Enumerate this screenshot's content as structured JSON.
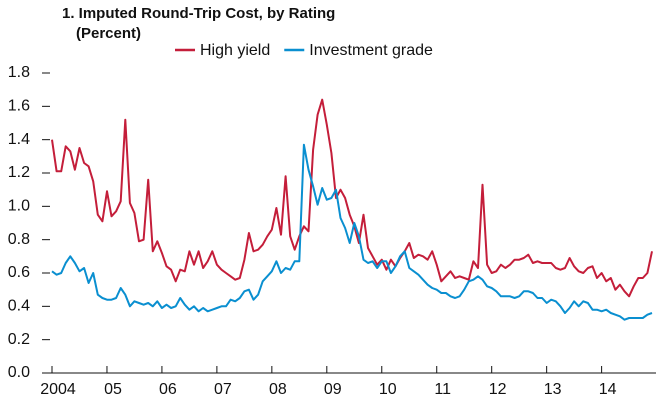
{
  "chart_data": {
    "type": "line",
    "title": "1. Imputed Round-Trip Cost, by Rating",
    "subtitle": "(Percent)",
    "categories": [
      "2004",
      null,
      null,
      null,
      null,
      null,
      null,
      null,
      null,
      null,
      null,
      null,
      "05",
      null,
      null,
      null,
      null,
      null,
      null,
      null,
      null,
      null,
      null,
      null,
      "06",
      null,
      null,
      null,
      null,
      null,
      null,
      null,
      null,
      null,
      null,
      null,
      "07",
      null,
      null,
      null,
      null,
      null,
      null,
      null,
      null,
      null,
      null,
      null,
      "08",
      null,
      null,
      null,
      null,
      null,
      null,
      null,
      null,
      null,
      null,
      null,
      "09",
      null,
      null,
      null,
      null,
      null,
      null,
      null,
      null,
      null,
      null,
      null,
      "10",
      null,
      null,
      null,
      null,
      null,
      null,
      null,
      null,
      null,
      null,
      null,
      "11",
      null,
      null,
      null,
      null,
      null,
      null,
      null,
      null,
      null,
      null,
      null,
      "12",
      null,
      null,
      null,
      null,
      null,
      null,
      null,
      null,
      null,
      null,
      null,
      "13",
      null,
      null,
      null,
      null,
      null,
      null,
      null,
      null,
      null,
      null,
      null,
      "14",
      null,
      null,
      null,
      null,
      null,
      null,
      null,
      null,
      null,
      null,
      null
    ],
    "series": [
      {
        "name": "High yield",
        "color": "#c41e3a",
        "values": [
          1.4,
          1.21,
          1.21,
          1.36,
          1.33,
          1.22,
          1.35,
          1.26,
          1.24,
          1.15,
          0.95,
          0.91,
          1.09,
          0.94,
          0.97,
          1.03,
          1.52,
          1.02,
          0.96,
          0.79,
          0.8,
          1.16,
          0.73,
          0.79,
          0.72,
          0.64,
          0.62,
          0.55,
          0.62,
          0.61,
          0.73,
          0.65,
          0.73,
          0.63,
          0.67,
          0.73,
          0.65,
          0.62,
          0.6,
          0.58,
          0.56,
          0.57,
          0.68,
          0.84,
          0.73,
          0.74,
          0.77,
          0.82,
          0.86,
          0.99,
          0.83,
          1.18,
          0.82,
          0.74,
          0.82,
          0.88,
          0.85,
          1.34,
          1.55,
          1.64,
          1.49,
          1.32,
          1.05,
          1.1,
          1.05,
          0.95,
          0.88,
          0.78,
          0.95,
          0.75,
          0.7,
          0.65,
          0.68,
          0.62,
          0.68,
          0.64,
          0.69,
          0.73,
          0.78,
          0.69,
          0.71,
          0.7,
          0.68,
          0.73,
          0.65,
          0.55,
          0.58,
          0.61,
          0.57,
          0.58,
          0.57,
          0.56,
          0.67,
          0.63,
          1.13,
          0.65,
          0.6,
          0.61,
          0.65,
          0.63,
          0.65,
          0.68,
          0.68,
          0.69,
          0.71,
          0.66,
          0.67,
          0.66,
          0.66,
          0.66,
          0.63,
          0.62,
          0.63,
          0.69,
          0.64,
          0.61,
          0.6,
          0.63,
          0.64,
          0.57,
          0.6,
          0.55,
          0.57,
          0.5,
          0.53,
          0.49,
          0.46,
          0.52,
          0.57,
          0.57,
          0.6,
          0.73
        ]
      },
      {
        "name": "Investment grade",
        "color": "#0a8fd0",
        "values": [
          0.61,
          0.59,
          0.6,
          0.66,
          0.7,
          0.66,
          0.61,
          0.63,
          0.54,
          0.6,
          0.47,
          0.45,
          0.44,
          0.44,
          0.45,
          0.51,
          0.47,
          0.4,
          0.43,
          0.42,
          0.41,
          0.42,
          0.4,
          0.43,
          0.39,
          0.41,
          0.39,
          0.4,
          0.45,
          0.41,
          0.38,
          0.4,
          0.37,
          0.39,
          0.37,
          0.38,
          0.39,
          0.4,
          0.4,
          0.44,
          0.43,
          0.45,
          0.49,
          0.5,
          0.44,
          0.47,
          0.55,
          0.58,
          0.61,
          0.67,
          0.6,
          0.63,
          0.62,
          0.67,
          0.67,
          1.37,
          1.22,
          1.12,
          1.01,
          1.11,
          1.04,
          1.05,
          1.1,
          0.93,
          0.87,
          0.78,
          0.9,
          0.82,
          0.68,
          0.66,
          0.67,
          0.63,
          0.67,
          0.67,
          0.6,
          0.64,
          0.7,
          0.73,
          0.63,
          0.61,
          0.59,
          0.56,
          0.53,
          0.51,
          0.5,
          0.48,
          0.48,
          0.46,
          0.45,
          0.46,
          0.5,
          0.55,
          0.56,
          0.58,
          0.56,
          0.52,
          0.51,
          0.49,
          0.46,
          0.46,
          0.46,
          0.45,
          0.46,
          0.49,
          0.49,
          0.48,
          0.45,
          0.45,
          0.42,
          0.44,
          0.43,
          0.4,
          0.36,
          0.39,
          0.43,
          0.4,
          0.43,
          0.42,
          0.38,
          0.38,
          0.37,
          0.38,
          0.36,
          0.35,
          0.34,
          0.32,
          0.33,
          0.33,
          0.33,
          0.33,
          0.35,
          0.36
        ]
      }
    ],
    "ylim": [
      0,
      1.8
    ],
    "yticks": [
      {
        "value": 0,
        "label": "0.0"
      },
      0.2,
      0.4,
      0.6,
      0.8,
      {
        "value": 1,
        "label": "1.0"
      },
      1.2,
      1.4,
      1.6,
      1.8
    ],
    "legend": "top"
  }
}
